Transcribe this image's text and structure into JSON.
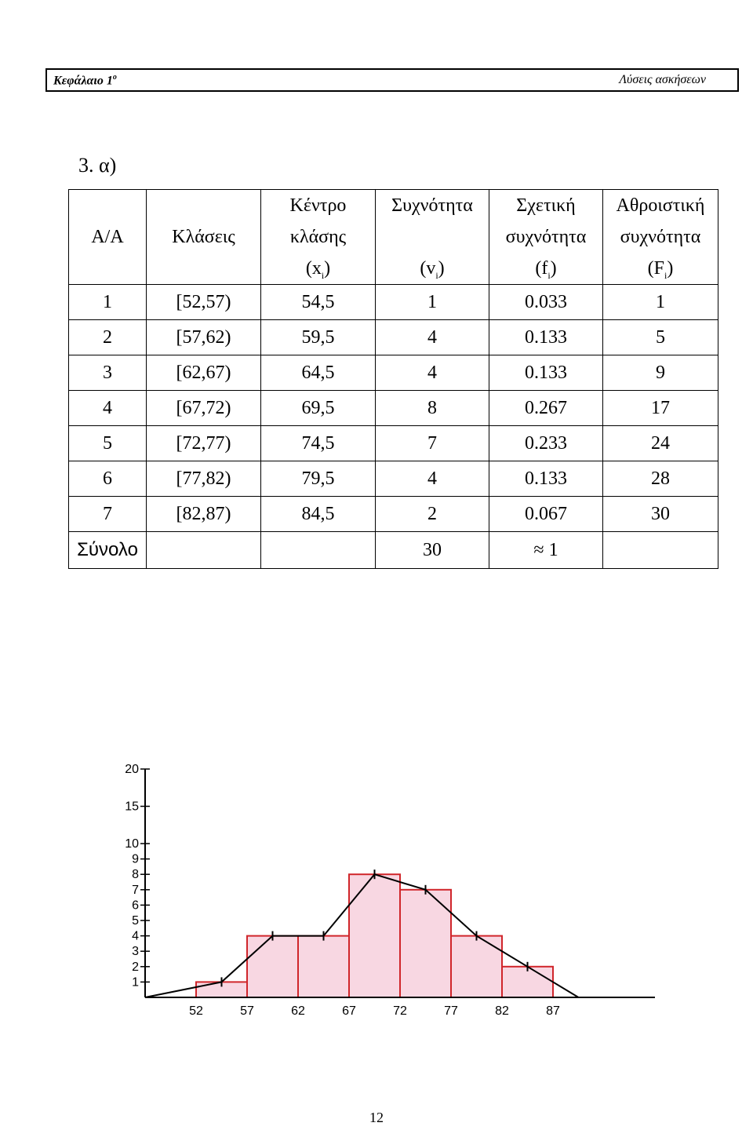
{
  "header": {
    "left": "Κεφάλαιο 1",
    "left_sup": "ο",
    "right": "Λύσεις ασκήσεων"
  },
  "question_label": "3.  α)",
  "table": {
    "headers": [
      [
        "",
        "",
        "Κέντρο",
        "Συχνότητα",
        "Σχετική",
        "Αθροιστική"
      ],
      [
        "Α/Α",
        "Κλάσεις",
        "κλάσης",
        "",
        "συχνότητα",
        "συχνότητα"
      ],
      [
        "",
        "",
        "(x",
        "(v",
        "(f",
        "(F"
      ]
    ],
    "rows": [
      [
        "1",
        "[52,57)",
        "54,5",
        "1",
        "0.033",
        "1"
      ],
      [
        "2",
        "[57,62)",
        "59,5",
        "4",
        "0.133",
        "5"
      ],
      [
        "3",
        "[62,67)",
        "64,5",
        "4",
        "0.133",
        "9"
      ],
      [
        "4",
        "[67,72)",
        "69,5",
        "8",
        "0.267",
        "17"
      ],
      [
        "5",
        "[72,77)",
        "74,5",
        "7",
        "0.233",
        "24"
      ],
      [
        "6",
        "[77,82)",
        "79,5",
        "4",
        "0.133",
        "28"
      ],
      [
        "7",
        "[82,87)",
        "84,5",
        "2",
        "0.067",
        "30"
      ]
    ],
    "total": [
      "Σύνολο",
      "",
      "",
      "30",
      "≈ 1",
      ""
    ]
  },
  "chart_data": {
    "type": "bar",
    "subtype": "histogram with frequency polygon",
    "bins": [
      "[52,57)",
      "[57,62)",
      "[62,67)",
      "[67,72)",
      "[72,77)",
      "[77,82)",
      "[82,87)"
    ],
    "values": [
      1,
      4,
      4,
      8,
      7,
      4,
      2
    ],
    "polygon": {
      "x": [
        47,
        54.5,
        59.5,
        64.5,
        69.5,
        74.5,
        79.5,
        84.5,
        89.5
      ],
      "y": [
        0,
        1,
        4,
        4,
        8,
        7,
        4,
        2,
        0
      ]
    },
    "x_ticks": [
      "52",
      "57",
      "62",
      "67",
      "72",
      "77",
      "82",
      "87"
    ],
    "y_ticks": [
      "1",
      "2",
      "3",
      "4",
      "5",
      "6",
      "7",
      "8",
      "9",
      "10",
      "15",
      "20"
    ],
    "ylim": [
      0,
      20
    ],
    "bar_fill": "#f8d7e2",
    "bar_stroke": "#d0262b",
    "line_color": "#000000"
  },
  "page_number": "12"
}
